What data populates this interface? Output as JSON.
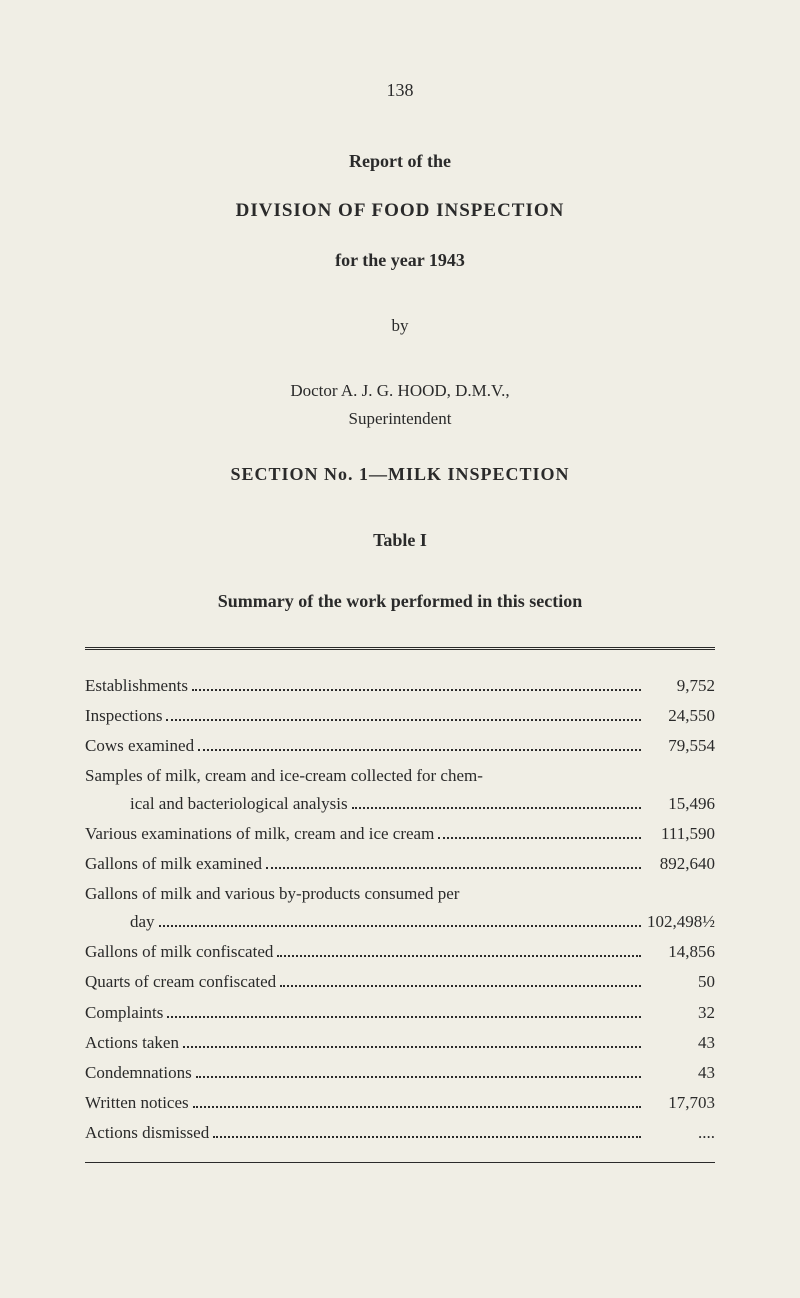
{
  "page_number": "138",
  "header": {
    "report_of": "Report of the",
    "division": "DIVISION OF FOOD INSPECTION",
    "year": "for the year 1943",
    "by": "by",
    "author": "Doctor A. J. G. HOOD, D.M.V.,",
    "role": "Superintendent",
    "section": "SECTION No. 1—MILK INSPECTION",
    "table_title": "Table I",
    "summary": "Summary of the work performed in this section"
  },
  "rows": [
    {
      "label": "Establishments",
      "value": "9,752"
    },
    {
      "label": "Inspections",
      "value": "24,550"
    },
    {
      "label": "Cows examined",
      "value": "79,554"
    },
    {
      "label_line1": "Samples of milk, cream and ice-cream collected for chem-",
      "label_line2": "ical and bacteriological analysis",
      "value": "15,496",
      "multiline": true
    },
    {
      "label": "Various examinations of milk, cream and ice cream",
      "value": "111,590"
    },
    {
      "label": "Gallons of milk examined",
      "value": "892,640"
    },
    {
      "label_line1": "Gallons of milk and various by-products consumed per",
      "label_line2": "day",
      "value": "102,498½",
      "multiline": true
    },
    {
      "label": "Gallons of milk confiscated",
      "value": "14,856"
    },
    {
      "label": "Quarts of cream confiscated",
      "value": "50"
    },
    {
      "label": "Complaints",
      "value": "32"
    },
    {
      "label": "Actions taken",
      "value": "43"
    },
    {
      "label": "Condemnations",
      "value": "43"
    },
    {
      "label": "Written notices",
      "value": "17,703"
    },
    {
      "label": "Actions dismissed",
      "value": "...."
    }
  ],
  "style": {
    "background_color": "#f0eee5",
    "text_color": "#2a2a2a",
    "font_family": "Georgia, Times New Roman, serif",
    "page_font_size": 17,
    "title_font_size": 18
  }
}
